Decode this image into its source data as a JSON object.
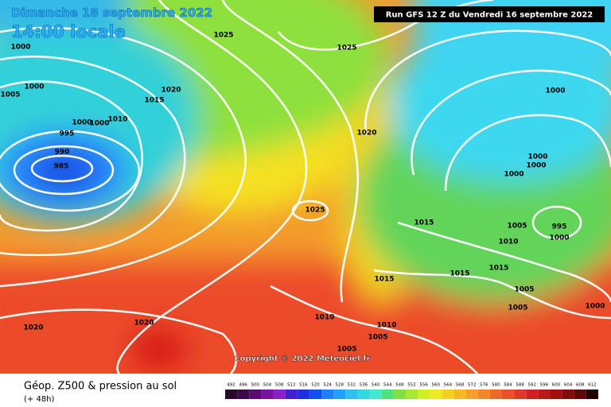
{
  "header": {
    "date": "Dimanche 18 septembre 2022",
    "time": "14:00 locale",
    "run": "Run GFS 12 Z du Vendredi 16 septembre 2022"
  },
  "isobar_labels": [
    "1025",
    "1025",
    "1000",
    "1000",
    "1005",
    "1020",
    "1015",
    "1010",
    "1000",
    "1000",
    "995",
    "990",
    "985",
    "1020",
    "1000",
    "1000",
    "1000",
    "1000",
    "1025",
    "1015",
    "1005",
    "995",
    "1000",
    "1010",
    "1015",
    "1015",
    "1015",
    "1005",
    "1005",
    "1000",
    "1010",
    "1010",
    "1005",
    "1005",
    "1020",
    "1020"
  ],
  "copyright": "Copyright © 2022 Meteociel.fr",
  "footer": {
    "title": "Géop. Z500 & pression au sol",
    "lead": "(+ 48h)"
  },
  "legend": {
    "scale": [
      492,
      496,
      500,
      504,
      508,
      512,
      516,
      520,
      524,
      528,
      532,
      536,
      540,
      544,
      548,
      552,
      556,
      560,
      564,
      568,
      572,
      576,
      580,
      584,
      588,
      592,
      596,
      600,
      604,
      608,
      612
    ]
  }
}
